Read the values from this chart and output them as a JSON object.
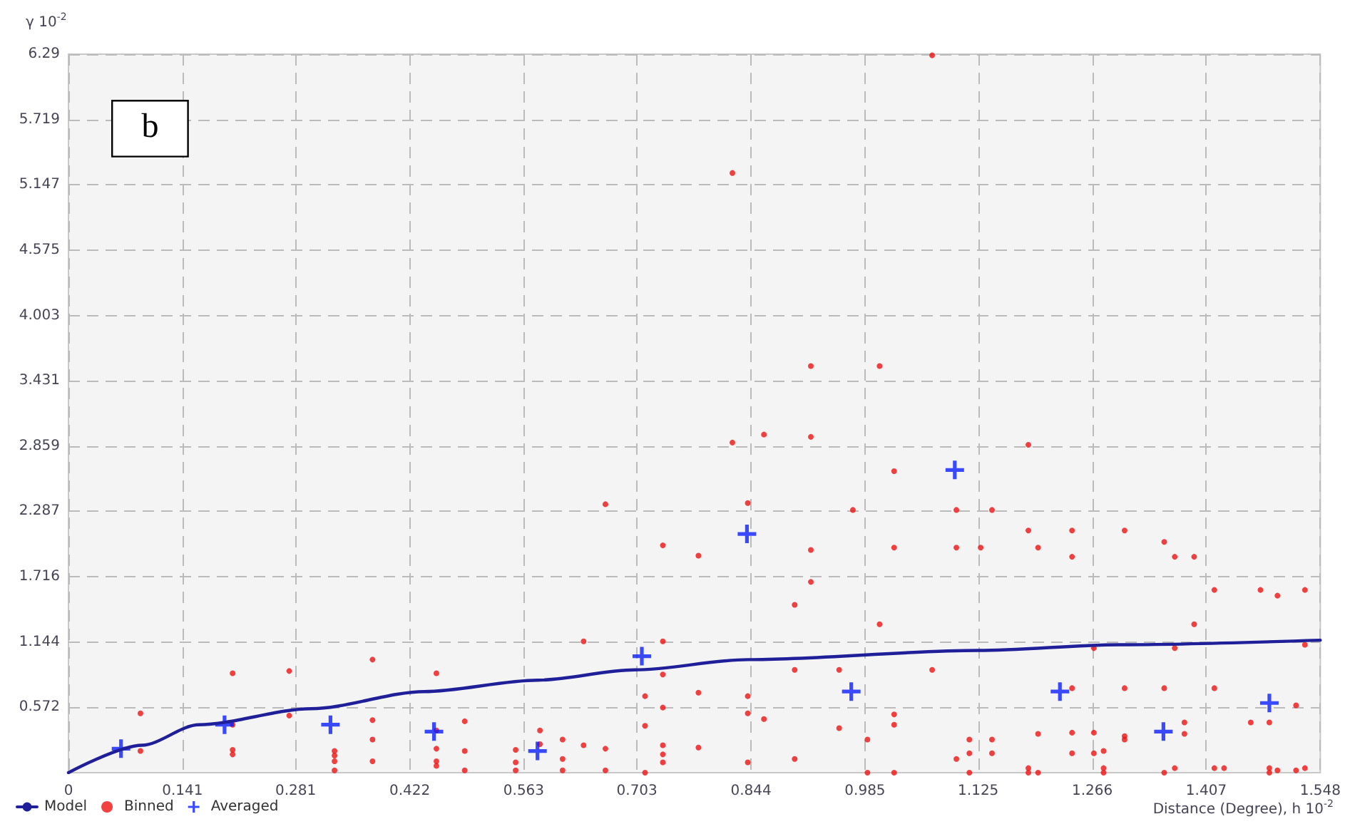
{
  "chart_data": {
    "type": "scatter",
    "ylabel": "γ 10$^{-2}$",
    "xlabel": "Distance (Degree), h 10$^{-2}$",
    "annotations": [
      "b"
    ],
    "xlim": [
      0,
      1.548
    ],
    "xticks": [
      0,
      0.141,
      0.281,
      0.422,
      0.563,
      0.703,
      0.844,
      0.985,
      1.125,
      1.266,
      1.407,
      1.548
    ],
    "ylim": [
      0,
      6.29
    ],
    "yticks": [
      0.572,
      1.144,
      1.716,
      2.287,
      2.859,
      3.431,
      4.003,
      4.575,
      5.147,
      5.719,
      6.29
    ],
    "grid": true,
    "legend": "bottom left",
    "series": [
      {
        "name": "Model",
        "type": "line",
        "color": "#1f1f9a",
        "marker": "none",
        "line_style": "solid",
        "x": [
          0,
          0.091,
          0.161,
          0.3,
          0.44,
          0.58,
          0.7,
          0.84,
          1.125,
          1.3,
          1.548
        ],
        "values": [
          0,
          0.24,
          0.42,
          0.56,
          0.71,
          0.81,
          0.9,
          0.99,
          1.07,
          1.12,
          1.16
        ]
      },
      {
        "name": "Binned",
        "color": "#ee1111",
        "marker": "circle",
        "x": [
          0.089,
          0.089,
          0.203,
          0.203,
          0.203,
          0.203,
          0.273,
          0.273,
          0.329,
          0.329,
          0.329,
          0.329,
          0.376,
          0.376,
          0.376,
          0.376,
          0.455,
          0.455,
          0.455,
          0.455,
          0.455,
          0.49,
          0.49,
          0.49,
          0.553,
          0.553,
          0.553,
          0.583,
          0.583,
          0.611,
          0.611,
          0.611,
          0.637,
          0.637,
          0.664,
          0.664,
          0.664,
          0.713,
          0.713,
          0.713,
          0.735,
          0.735,
          0.735,
          0.735,
          0.735,
          0.735,
          0.735,
          0.779,
          0.779,
          0.779,
          0.821,
          0.821,
          0.84,
          0.84,
          0.84,
          0.84,
          0.86,
          0.86,
          0.898,
          0.898,
          0.898,
          0.918,
          0.918,
          0.918,
          0.918,
          0.953,
          0.953,
          0.97,
          0.988,
          0.988,
          1.003,
          1.003,
          1.021,
          1.021,
          1.021,
          1.021,
          1.021,
          1.068,
          1.068,
          1.098,
          1.098,
          1.098,
          1.114,
          1.114,
          1.114,
          1.128,
          1.142,
          1.142,
          1.142,
          1.187,
          1.187,
          1.187,
          1.187,
          1.199,
          1.199,
          1.199,
          1.241,
          1.241,
          1.241,
          1.241,
          1.241,
          1.268,
          1.268,
          1.268,
          1.28,
          1.28,
          1.28,
          1.306,
          1.306,
          1.306,
          1.306,
          1.355,
          1.355,
          1.355,
          1.368,
          1.368,
          1.368,
          1.38,
          1.38,
          1.392,
          1.392,
          1.417,
          1.417,
          1.417,
          1.429,
          1.462,
          1.474,
          1.485,
          1.485,
          1.485,
          1.495,
          1.495,
          1.518,
          1.518,
          1.529,
          1.529,
          1.529
        ],
        "values": [
          0.52,
          0.19,
          0.87,
          0.42,
          0.2,
          0.16,
          0.89,
          0.5,
          0.19,
          0.15,
          0.1,
          0.02,
          0.99,
          0.46,
          0.29,
          0.1,
          0.87,
          0.37,
          0.21,
          0.1,
          0.06,
          0.45,
          0.19,
          0.02,
          0.2,
          0.09,
          0.02,
          0.37,
          0.25,
          0.29,
          0.12,
          0.02,
          1.15,
          0.24,
          2.35,
          0.21,
          0.02,
          0.67,
          0.41,
          0,
          1.99,
          1.15,
          0.86,
          0.57,
          0.24,
          0.16,
          0.09,
          1.9,
          0.7,
          0.22,
          5.25,
          2.89,
          2.36,
          0.67,
          0.52,
          0.09,
          2.96,
          0.47,
          1.47,
          0.9,
          0.12,
          3.56,
          2.94,
          1.95,
          1.67,
          0.9,
          0.39,
          2.3,
          0.29,
          0,
          3.56,
          1.3,
          2.64,
          1.97,
          0.51,
          0.42,
          0,
          6.28,
          0.9,
          2.3,
          1.97,
          0.12,
          0.29,
          0.17,
          0,
          1.97,
          2.3,
          0.29,
          0.17,
          2.87,
          2.12,
          0.04,
          0,
          1.97,
          0.34,
          0,
          2.12,
          1.89,
          0.74,
          0.35,
          0.17,
          1.09,
          0.35,
          0.17,
          0.19,
          0.04,
          0,
          2.12,
          0.74,
          0.32,
          0.29,
          2.02,
          0.74,
          0,
          1.89,
          1.09,
          0.04,
          0.44,
          0.34,
          1.89,
          1.3,
          1.6,
          0.74,
          0.04,
          0.04,
          0.44,
          1.6,
          0.44,
          0.04,
          0,
          1.55,
          0.02,
          0.59,
          0.02,
          1.6,
          1.12,
          0.04
        ]
      },
      {
        "name": "Averaged",
        "color": "#0a1eff",
        "marker": "cross",
        "x": [
          0.065,
          0.193,
          0.324,
          0.452,
          0.58,
          0.709,
          0.839,
          0.968,
          1.096,
          1.226,
          1.354,
          1.485
        ],
        "values": [
          0.21,
          0.42,
          0.42,
          0.36,
          0.19,
          1.02,
          2.09,
          0.71,
          2.65,
          0.71,
          0.36,
          0.61
        ]
      }
    ]
  }
}
